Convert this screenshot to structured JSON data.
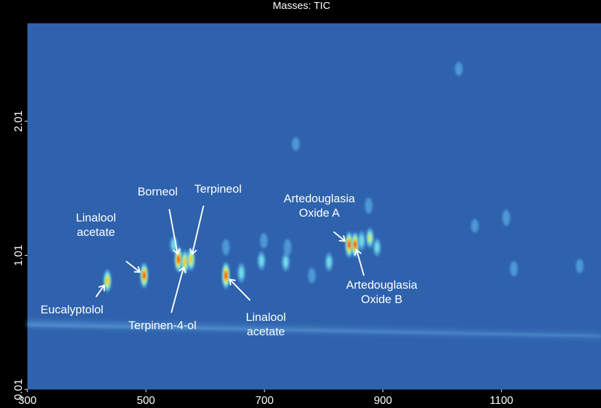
{
  "chart_data": {
    "type": "heatmap",
    "title": "Masses: TIC",
    "xlim": [
      300,
      1268
    ],
    "ylim": [
      0.01,
      2.74
    ],
    "xticks": [
      300,
      500,
      700,
      900,
      1100
    ],
    "yticks": [
      0.01,
      1.01,
      2.01
    ],
    "background": "#2f62ad",
    "spots": {
      "x": [
        435,
        497,
        555,
        566,
        576,
        635,
        843,
        853,
        661,
        695,
        736,
        739,
        809,
        864,
        878,
        890,
        547,
        635,
        699,
        780,
        1108,
        1121,
        1232,
        1055,
        1028,
        753,
        876
      ],
      "y": [
        0.82,
        0.86,
        0.98,
        0.96,
        0.98,
        0.86,
        1.09,
        1.09,
        0.88,
        0.97,
        0.96,
        1.07,
        0.96,
        1.12,
        1.14,
        1.07,
        1.09,
        1.07,
        1.12,
        0.86,
        1.29,
        0.91,
        0.93,
        1.23,
        2.4,
        1.84,
        1.38
      ],
      "values": [
        70,
        85,
        90,
        75,
        70,
        95,
        90,
        85,
        50,
        45,
        45,
        30,
        45,
        50,
        55,
        40,
        35,
        30,
        25,
        25,
        30,
        25,
        20,
        15,
        15,
        15,
        30
      ],
      "labels": [
        "Eucalyptolol",
        "Linalool acetate",
        "Borneol",
        "Terpinen-4-ol",
        "Terpineol",
        "Linalool acetate",
        "Artedouglasia Oxide A",
        "Artedouglasia Oxide B",
        null,
        null,
        null,
        null,
        null,
        null,
        null,
        null,
        null,
        null,
        null,
        null,
        null,
        null,
        null,
        null,
        null,
        null,
        null
      ]
    }
  }
}
